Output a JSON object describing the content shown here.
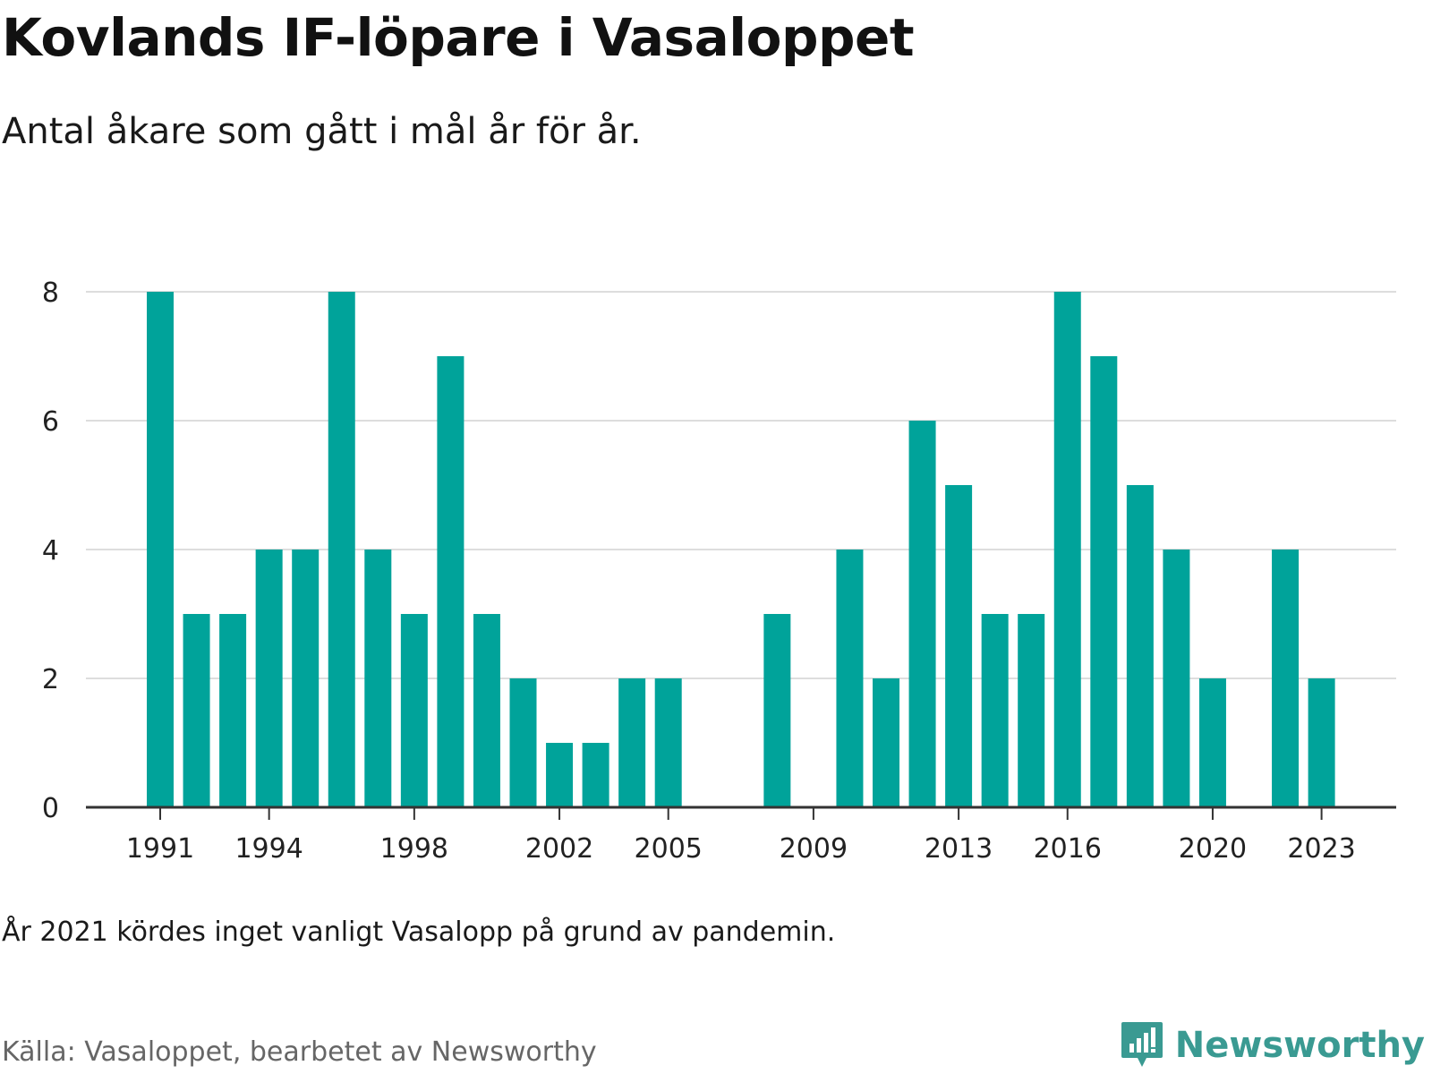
{
  "title": "Kovlands IF-löpare i Vasaloppet",
  "subtitle": "Antal åkare som gått i mål år för år.",
  "note": "År 2021 kördes inget vanligt Vasalopp på grund av pandemin.",
  "source": "Källa: Vasaloppet, bearbetet av Newsworthy",
  "brand": {
    "name": "Newsworthy",
    "icon": "newsworthy-logo-icon"
  },
  "colors": {
    "bar": "#00a39a",
    "grid": "#dddddd",
    "axis": "#333333",
    "brand": "#3a9a92"
  },
  "chart_data": {
    "type": "bar",
    "title": "",
    "xlabel": "",
    "ylabel": "",
    "ylim": [
      0,
      8
    ],
    "yticks": [
      0,
      2,
      4,
      6,
      8
    ],
    "xticks": [
      1991,
      1994,
      1998,
      2002,
      2005,
      2009,
      2013,
      2016,
      2020,
      2023
    ],
    "grid": true,
    "x": [
      1991,
      1992,
      1993,
      1994,
      1995,
      1996,
      1997,
      1998,
      1999,
      2000,
      2001,
      2002,
      2003,
      2004,
      2005,
      2006,
      2007,
      2008,
      2009,
      2010,
      2011,
      2012,
      2013,
      2014,
      2015,
      2016,
      2017,
      2018,
      2019,
      2020,
      2021,
      2022,
      2023
    ],
    "values": [
      8,
      3,
      3,
      4,
      4,
      8,
      4,
      3,
      7,
      3,
      2,
      1,
      1,
      2,
      2,
      0,
      0,
      3,
      0,
      4,
      2,
      6,
      5,
      3,
      3,
      8,
      7,
      5,
      4,
      2,
      0,
      4,
      2
    ]
  }
}
